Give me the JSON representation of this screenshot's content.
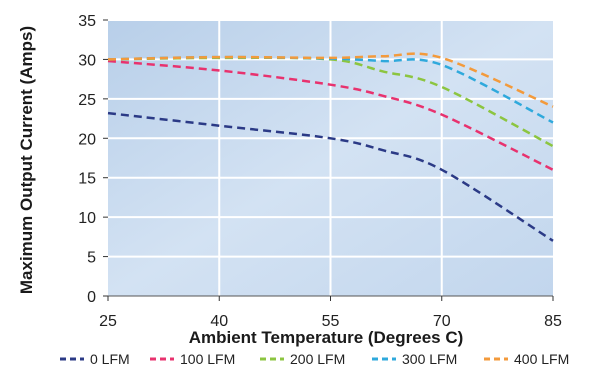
{
  "chart_data": {
    "type": "line",
    "title": "",
    "xlabel": "Ambient Temperature (Degrees C)",
    "ylabel": "Maximum Output Current (Amps)",
    "xlim": [
      25,
      85
    ],
    "ylim": [
      0,
      35
    ],
    "x_ticks": [
      25,
      40,
      55,
      70,
      85
    ],
    "y_ticks": [
      0,
      5,
      10,
      15,
      20,
      25,
      30,
      35
    ],
    "grid": true,
    "legend_position": "bottom",
    "line_style": "dashed",
    "background": "#c7d9ee",
    "series": [
      {
        "name": "0 LFM",
        "color": "#2b3a86",
        "x": [
          25,
          40,
          55,
          62,
          70,
          85
        ],
        "y": [
          23.2,
          21.6,
          20.0,
          18.5,
          16.0,
          7.0
        ]
      },
      {
        "name": "100 LFM",
        "color": "#e8326e",
        "x": [
          25,
          40,
          55,
          62,
          70,
          85
        ],
        "y": [
          29.8,
          28.6,
          26.8,
          25.4,
          23.0,
          16.0
        ]
      },
      {
        "name": "200 LFM",
        "color": "#8cc540",
        "x": [
          25,
          40,
          55,
          62,
          70,
          85
        ],
        "y": [
          30.0,
          30.2,
          30.0,
          28.5,
          26.5,
          19.0
        ]
      },
      {
        "name": "300 LFM",
        "color": "#2fa9dc",
        "x": [
          25,
          40,
          55,
          62,
          70,
          85
        ],
        "y": [
          30.0,
          30.3,
          30.1,
          29.8,
          29.3,
          22.0
        ]
      },
      {
        "name": "400 LFM",
        "color": "#f39a3b",
        "x": [
          25,
          40,
          55,
          62,
          70,
          85
        ],
        "y": [
          30.0,
          30.3,
          30.2,
          30.4,
          30.2,
          24.0
        ]
      }
    ]
  }
}
